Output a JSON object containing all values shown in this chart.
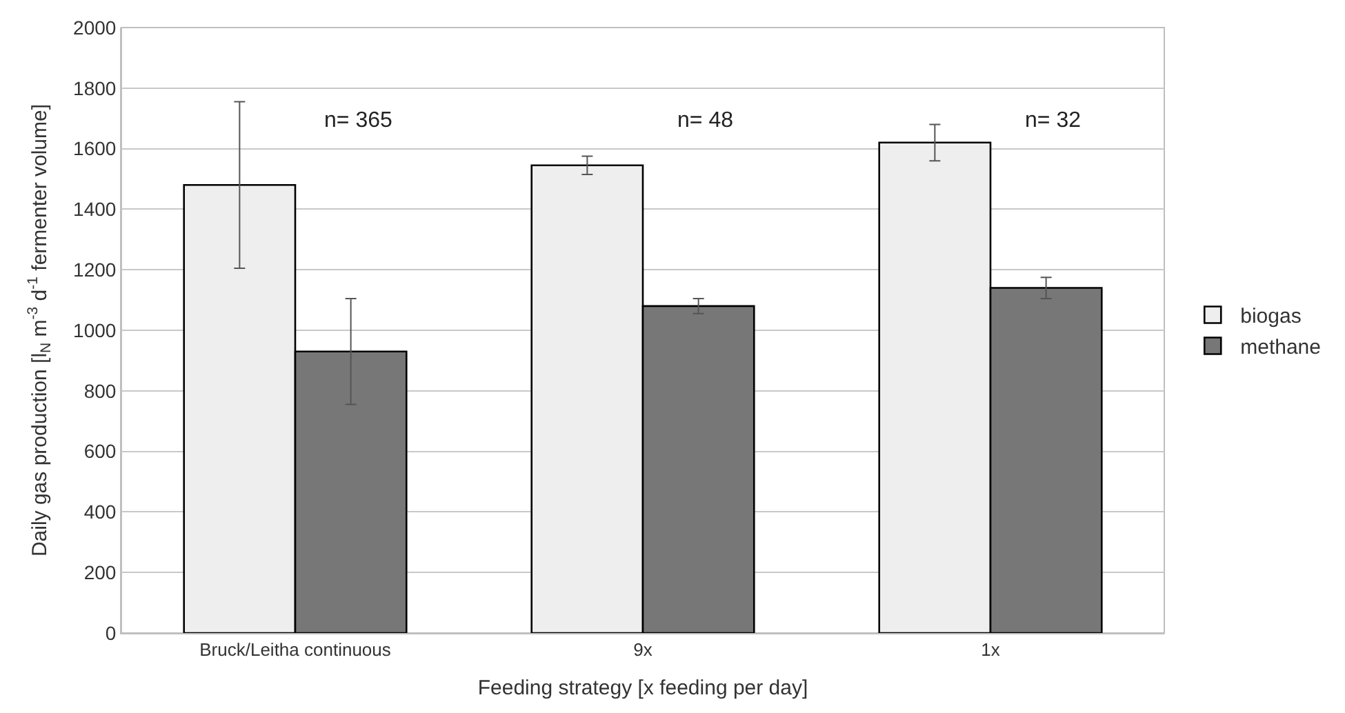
{
  "chart_data": {
    "type": "bar",
    "xlabel": "Feeding strategy [x feeding per day]",
    "ylabel": "Daily gas production [l$_{N}$ m$^{-3}$ d$^{-1}$ fermenter volume]",
    "categories": [
      "Bruck/Leitha continuous",
      "9x",
      "1x"
    ],
    "series": [
      {
        "name": "biogas",
        "color": "#eeeeee",
        "values": [
          1480,
          1545,
          1620
        ],
        "errors": [
          275,
          30,
          60
        ]
      },
      {
        "name": "methane",
        "color": "#777777",
        "values": [
          930,
          1080,
          1140
        ],
        "errors": [
          175,
          25,
          35
        ]
      }
    ],
    "annotations": [
      "n= 365",
      "n= 48",
      "n= 32"
    ],
    "ylim": [
      0,
      2000
    ],
    "yticks": [
      0,
      200,
      400,
      600,
      800,
      1000,
      1200,
      1400,
      1600,
      1800,
      2000
    ],
    "grid": "y",
    "legend": "right"
  }
}
